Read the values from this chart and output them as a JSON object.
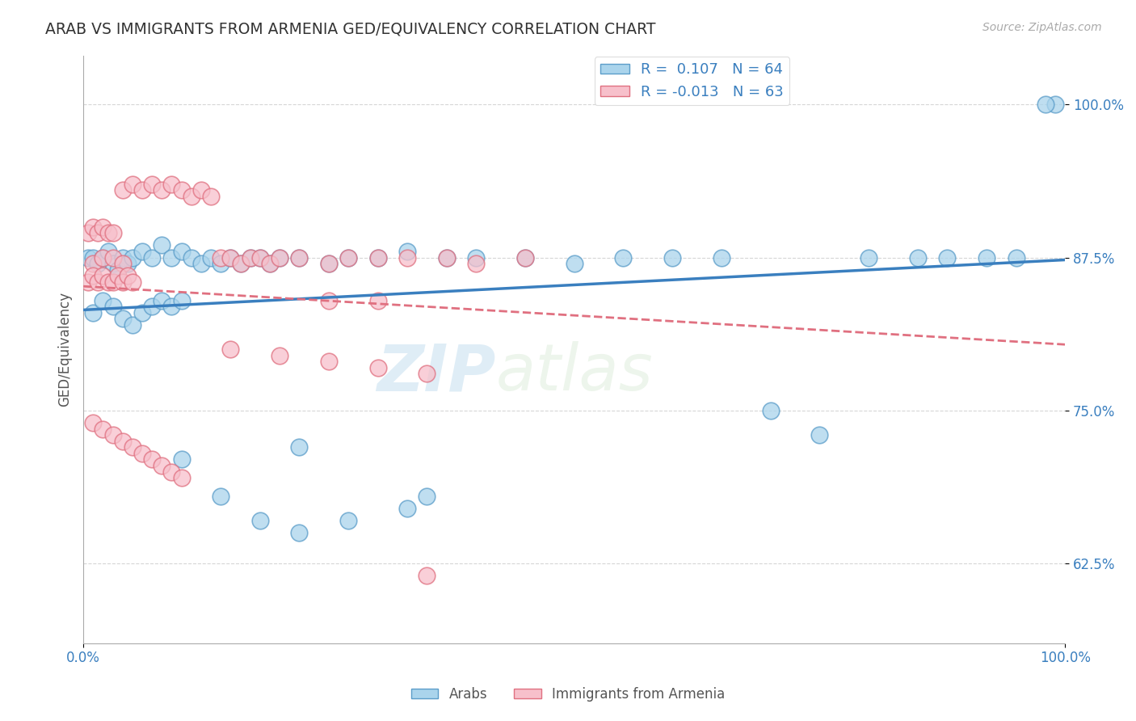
{
  "title": "ARAB VS IMMIGRANTS FROM ARMENIA GED/EQUIVALENCY CORRELATION CHART",
  "source": "Source: ZipAtlas.com",
  "ylabel": "GED/Equivalency",
  "xlim": [
    0.0,
    1.0
  ],
  "ylim": [
    0.56,
    1.04
  ],
  "yticks": [
    0.625,
    0.75,
    0.875,
    1.0
  ],
  "ytick_labels": [
    "62.5%",
    "75.0%",
    "87.5%",
    "100.0%"
  ],
  "r_arab": 0.107,
  "n_arab": 64,
  "r_armenia": -0.013,
  "n_armenia": 63,
  "color_arab_fill": "#aad4ec",
  "color_arab_edge": "#5b9dc9",
  "color_armenia_fill": "#f7c0cb",
  "color_armenia_edge": "#e07080",
  "color_arab_line": "#3a7fbf",
  "color_armenia_line": "#e07080",
  "legend_label_arab": "Arabs",
  "legend_label_armenia": "Immigrants from Armenia",
  "arab_x": [
    0.005,
    0.01,
    0.015,
    0.02,
    0.025,
    0.03,
    0.035,
    0.04,
    0.045,
    0.05,
    0.01,
    0.02,
    0.03,
    0.04,
    0.05,
    0.06,
    0.07,
    0.08,
    0.09,
    0.1,
    0.06,
    0.07,
    0.08,
    0.09,
    0.1,
    0.11,
    0.12,
    0.13,
    0.14,
    0.15,
    0.16,
    0.17,
    0.18,
    0.19,
    0.2,
    0.22,
    0.25,
    0.27,
    0.3,
    0.33,
    0.37,
    0.4,
    0.45,
    0.5,
    0.55,
    0.6,
    0.65,
    0.7,
    0.75,
    0.8,
    0.85,
    0.88,
    0.92,
    0.95,
    0.1,
    0.14,
    0.18,
    0.22,
    0.27,
    0.33,
    0.22,
    0.35,
    0.99,
    0.98
  ],
  "arab_y": [
    0.875,
    0.875,
    0.87,
    0.875,
    0.88,
    0.87,
    0.865,
    0.875,
    0.87,
    0.875,
    0.83,
    0.84,
    0.835,
    0.825,
    0.82,
    0.83,
    0.835,
    0.84,
    0.835,
    0.84,
    0.88,
    0.875,
    0.885,
    0.875,
    0.88,
    0.875,
    0.87,
    0.875,
    0.87,
    0.875,
    0.87,
    0.875,
    0.875,
    0.87,
    0.875,
    0.875,
    0.87,
    0.875,
    0.875,
    0.88,
    0.875,
    0.875,
    0.875,
    0.87,
    0.875,
    0.875,
    0.875,
    0.75,
    0.73,
    0.875,
    0.875,
    0.875,
    0.875,
    0.875,
    0.71,
    0.68,
    0.66,
    0.65,
    0.66,
    0.67,
    0.72,
    0.68,
    1.0,
    1.0
  ],
  "armenia_x": [
    0.005,
    0.01,
    0.015,
    0.02,
    0.025,
    0.03,
    0.01,
    0.02,
    0.03,
    0.04,
    0.04,
    0.05,
    0.06,
    0.07,
    0.08,
    0.09,
    0.1,
    0.11,
    0.12,
    0.13,
    0.005,
    0.01,
    0.015,
    0.02,
    0.025,
    0.03,
    0.035,
    0.04,
    0.045,
    0.05,
    0.14,
    0.15,
    0.16,
    0.17,
    0.18,
    0.19,
    0.2,
    0.22,
    0.25,
    0.27,
    0.3,
    0.33,
    0.37,
    0.4,
    0.45,
    0.15,
    0.2,
    0.25,
    0.3,
    0.35,
    0.01,
    0.02,
    0.03,
    0.04,
    0.05,
    0.06,
    0.07,
    0.08,
    0.09,
    0.1,
    0.25,
    0.3,
    0.35
  ],
  "armenia_y": [
    0.895,
    0.9,
    0.895,
    0.9,
    0.895,
    0.895,
    0.87,
    0.875,
    0.875,
    0.87,
    0.93,
    0.935,
    0.93,
    0.935,
    0.93,
    0.935,
    0.93,
    0.925,
    0.93,
    0.925,
    0.855,
    0.86,
    0.855,
    0.86,
    0.855,
    0.855,
    0.86,
    0.855,
    0.86,
    0.855,
    0.875,
    0.875,
    0.87,
    0.875,
    0.875,
    0.87,
    0.875,
    0.875,
    0.87,
    0.875,
    0.875,
    0.875,
    0.875,
    0.87,
    0.875,
    0.8,
    0.795,
    0.79,
    0.785,
    0.78,
    0.74,
    0.735,
    0.73,
    0.725,
    0.72,
    0.715,
    0.71,
    0.705,
    0.7,
    0.695,
    0.84,
    0.84,
    0.615
  ]
}
